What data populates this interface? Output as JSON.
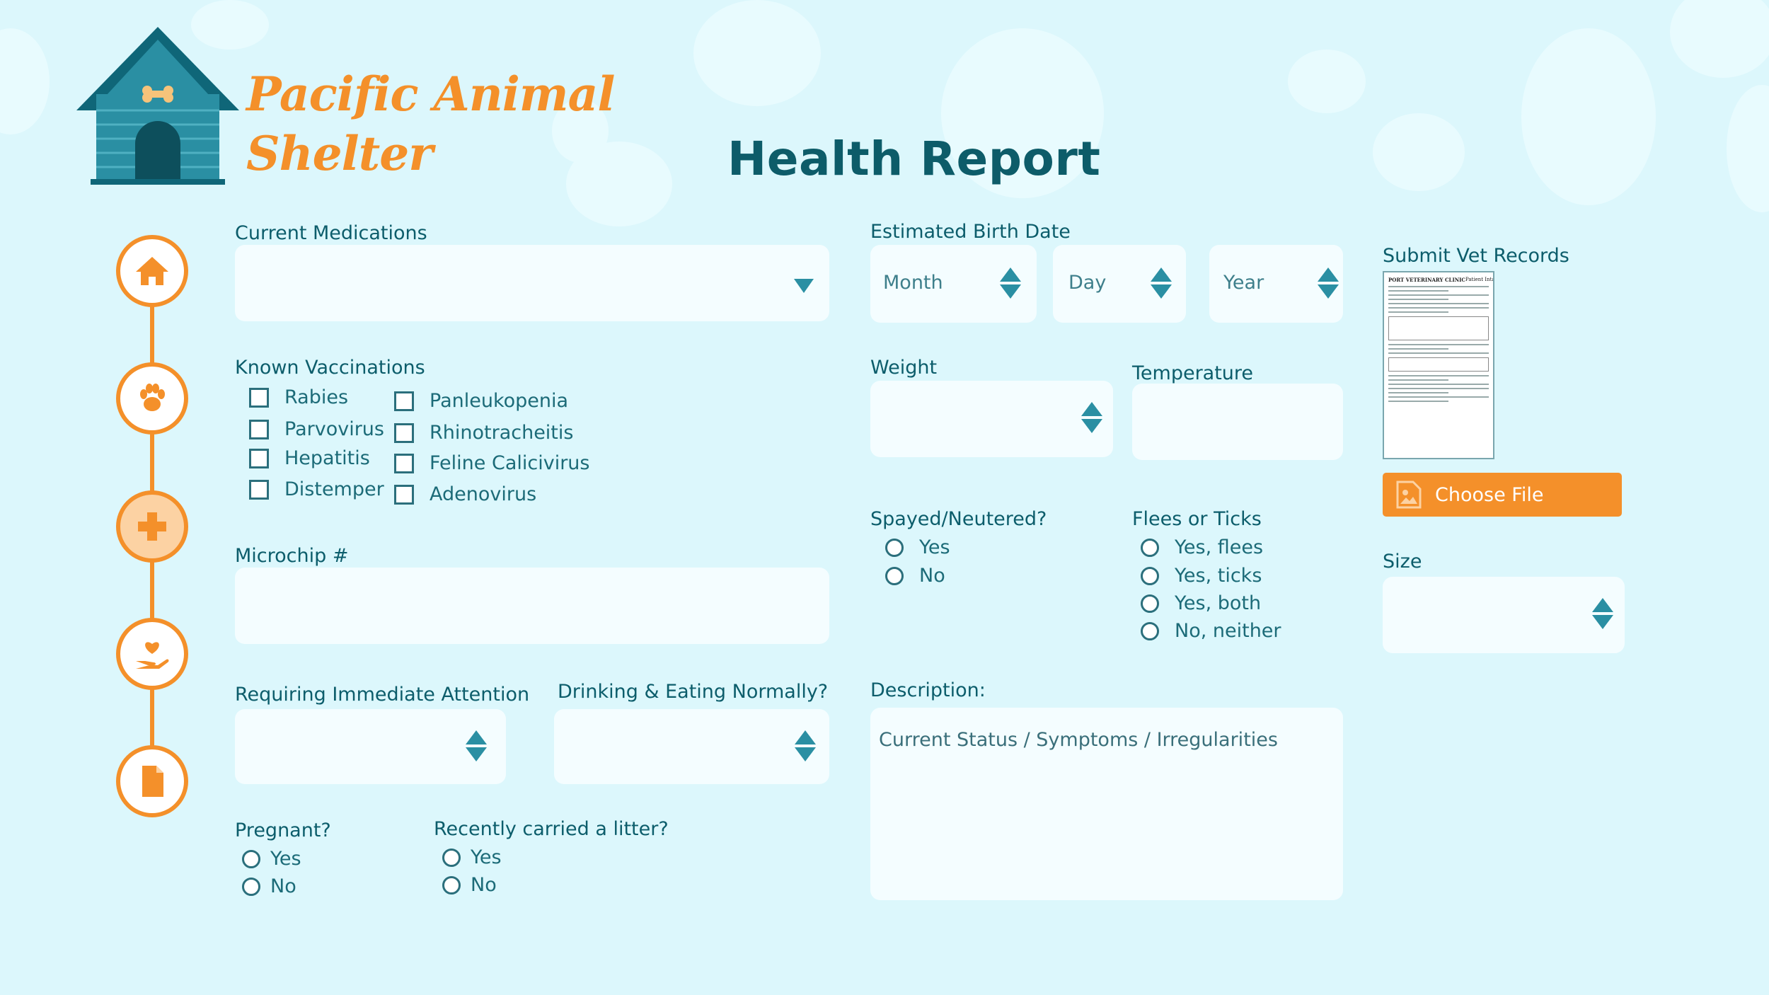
{
  "header": {
    "brand_line1": "Pacific Animal",
    "brand_line2": "Shelter",
    "title": "Health Report"
  },
  "colors": {
    "accent": "#f4902a",
    "teal": "#0c5d6b",
    "background": "#dcf7fc",
    "field": "#f4fdff"
  },
  "steps": [
    {
      "icon": "house-icon",
      "active": false
    },
    {
      "icon": "paw-icon",
      "active": false
    },
    {
      "icon": "medical-cross-icon",
      "active": true
    },
    {
      "icon": "heart-hand-icon",
      "active": false
    },
    {
      "icon": "document-icon",
      "active": false
    }
  ],
  "form": {
    "current_medications": {
      "label": "Current Medications"
    },
    "vaccinations": {
      "label": "Known Vaccinations",
      "col1": [
        "Rabies",
        "Parvovirus",
        "Hepatitis",
        "Distemper"
      ],
      "col2": [
        "Panleukopenia",
        "Rhinotracheitis",
        "Feline Calicivirus",
        "Adenovirus"
      ]
    },
    "microchip": {
      "label": "Microchip #"
    },
    "immediate_attention": {
      "label": "Requiring Immediate Attention"
    },
    "drinking_eating": {
      "label": "Drinking & Eating Normally?"
    },
    "pregnant": {
      "label": "Pregnant?",
      "options": [
        "Yes",
        "No"
      ]
    },
    "litter": {
      "label": "Recently carried a litter?",
      "options": [
        "Yes",
        "No"
      ]
    },
    "birth_date": {
      "label": "Estimated Birth Date",
      "month": "Month",
      "day": "Day",
      "year": "Year"
    },
    "weight": {
      "label": "Weight"
    },
    "temperature": {
      "label": "Temperature"
    },
    "spayed": {
      "label": "Spayed/Neutered?",
      "options": [
        "Yes",
        "No"
      ]
    },
    "fleas": {
      "label": "Flees or Ticks",
      "options": [
        "Yes, flees",
        "Yes, ticks",
        "Yes, both",
        "No, neither"
      ]
    },
    "description": {
      "label": "Description:",
      "placeholder": "Current Status / Symptoms / Irregularities"
    },
    "vet_records": {
      "label": "Submit Vet Records",
      "button": "Choose File",
      "doc_title": "PORT VETERINARY CLINIC",
      "doc_subtitle": "Patient Intake Form"
    },
    "size": {
      "label": "Size"
    }
  }
}
